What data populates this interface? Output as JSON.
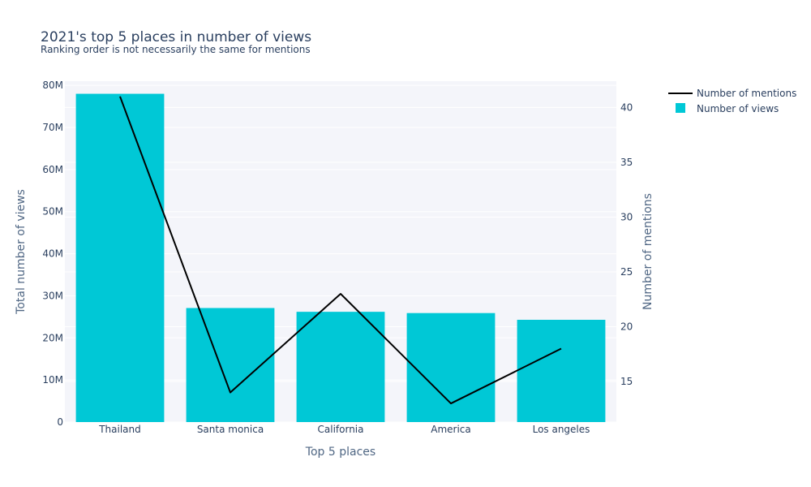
{
  "chart_data": {
    "type": "bar",
    "title": "2021's top 5 places in number of views",
    "subtitle": "Ranking order is not necessarily the same for mentions",
    "xlabel": "Top 5 places",
    "ylabel": "Total number of views",
    "y2label": "Number of mentions",
    "categories": [
      "Thailand",
      "Santa monica",
      "California",
      "America",
      "Los angeles"
    ],
    "ylim": [
      0,
      81000000
    ],
    "y2lim": [
      11.3,
      42.4
    ],
    "yticks": [
      0,
      10000000,
      20000000,
      30000000,
      40000000,
      50000000,
      60000000,
      70000000,
      80000000
    ],
    "yticklabels": [
      "0",
      "10M",
      "20M",
      "30M",
      "40M",
      "50M",
      "60M",
      "70M",
      "80M"
    ],
    "y2ticks": [
      15,
      20,
      25,
      30,
      35,
      40
    ],
    "y2ticklabels": [
      "15",
      "20",
      "25",
      "30",
      "35",
      "40"
    ],
    "series": [
      {
        "name": "Number of views",
        "type": "bar",
        "axis": "y",
        "color": "#00c8d6",
        "values": [
          78000000,
          27100000,
          26200000,
          25900000,
          24300000
        ]
      },
      {
        "name": "Number of mentions",
        "type": "line",
        "axis": "y2",
        "color": "#000000",
        "values": [
          41,
          14,
          23,
          13,
          18
        ]
      }
    ],
    "legend": "top-right",
    "grid": true,
    "plot_background": "#f4f5fa"
  }
}
